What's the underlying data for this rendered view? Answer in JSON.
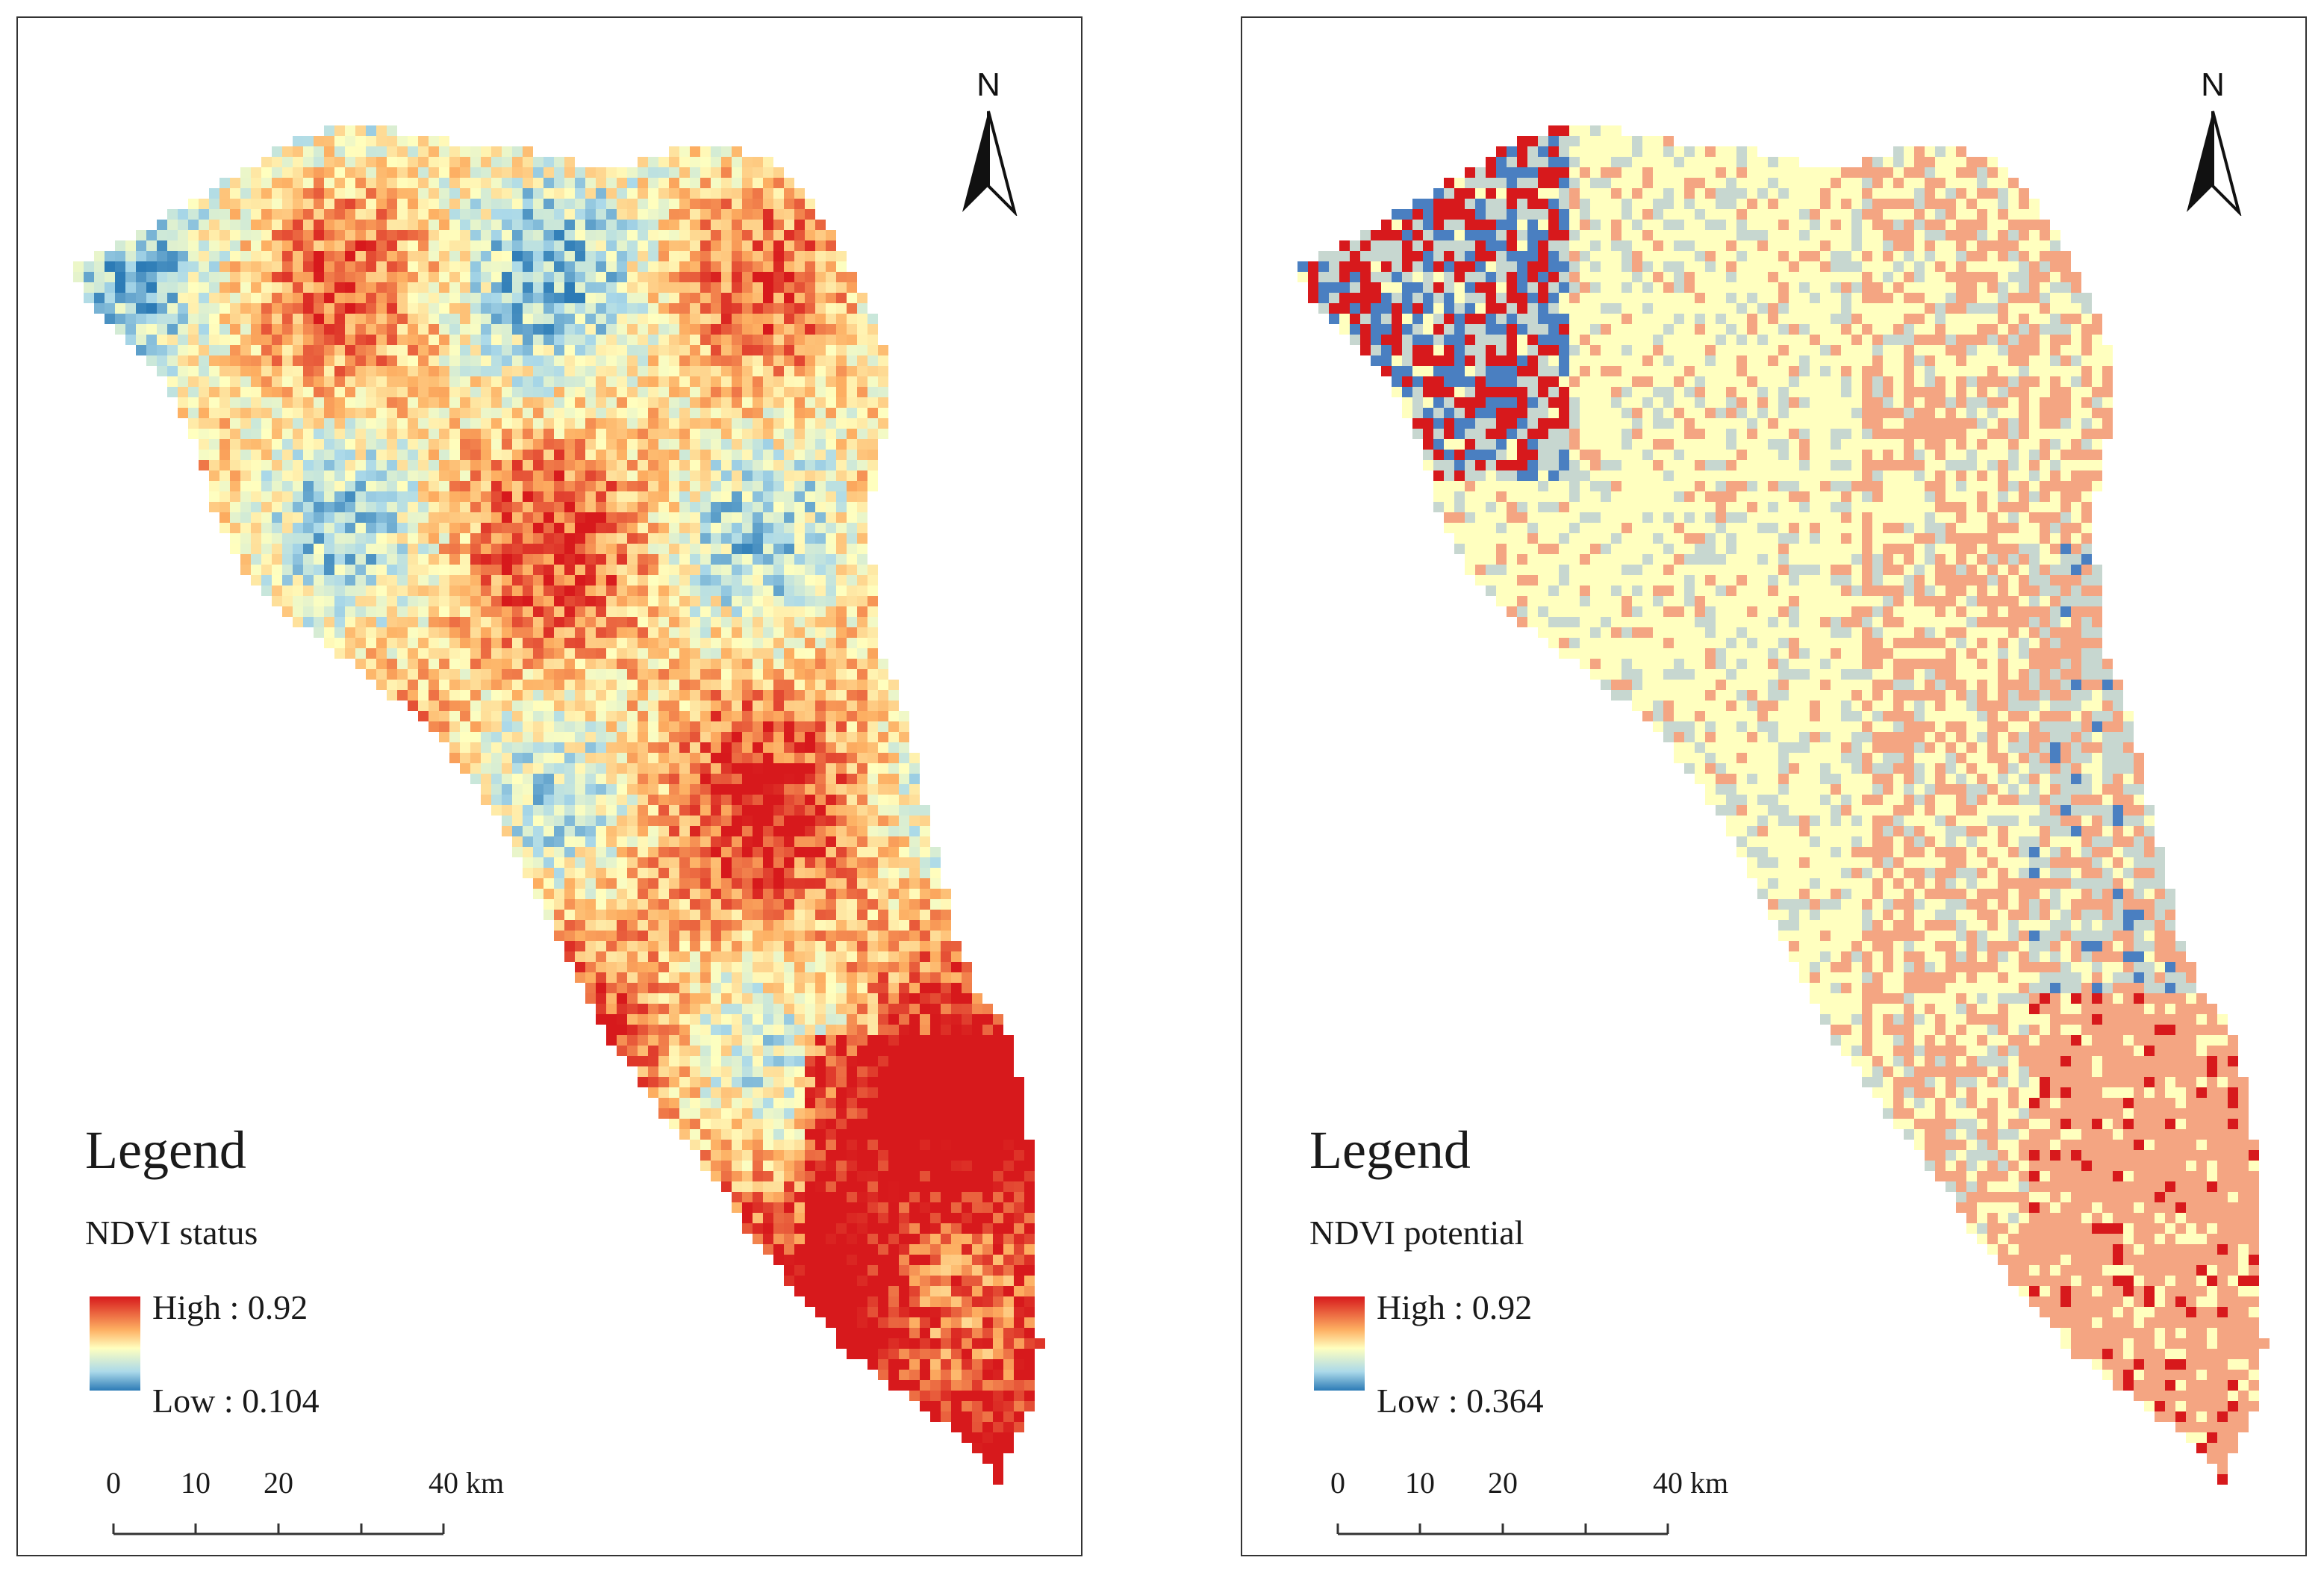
{
  "colors": {
    "high": "#d7191c",
    "mid": "#ffffbf",
    "low": "#2c7bb6",
    "frame": "#333333"
  },
  "maps": [
    {
      "id": "left",
      "legend_title": "Legend",
      "layer_name": "NDVI status",
      "high_label": "High : 0.92",
      "low_label": "Low : 0.104",
      "high_value": 0.92,
      "low_value": 0.104,
      "pattern": "continuous"
    },
    {
      "id": "right",
      "legend_title": "Legend",
      "layer_name": "NDVI potential",
      "high_label": "High : 0.92",
      "low_label": "Low : 0.364",
      "high_value": 0.92,
      "low_value": 0.364,
      "pattern": "classified"
    }
  ],
  "north_arrow": {
    "label": "N",
    "icon": "north-arrow-icon"
  },
  "scale_bar": {
    "ticks": [
      "0",
      "10",
      "20",
      "40"
    ],
    "tick_values": [
      0,
      10,
      20,
      40
    ],
    "unit": "km"
  }
}
